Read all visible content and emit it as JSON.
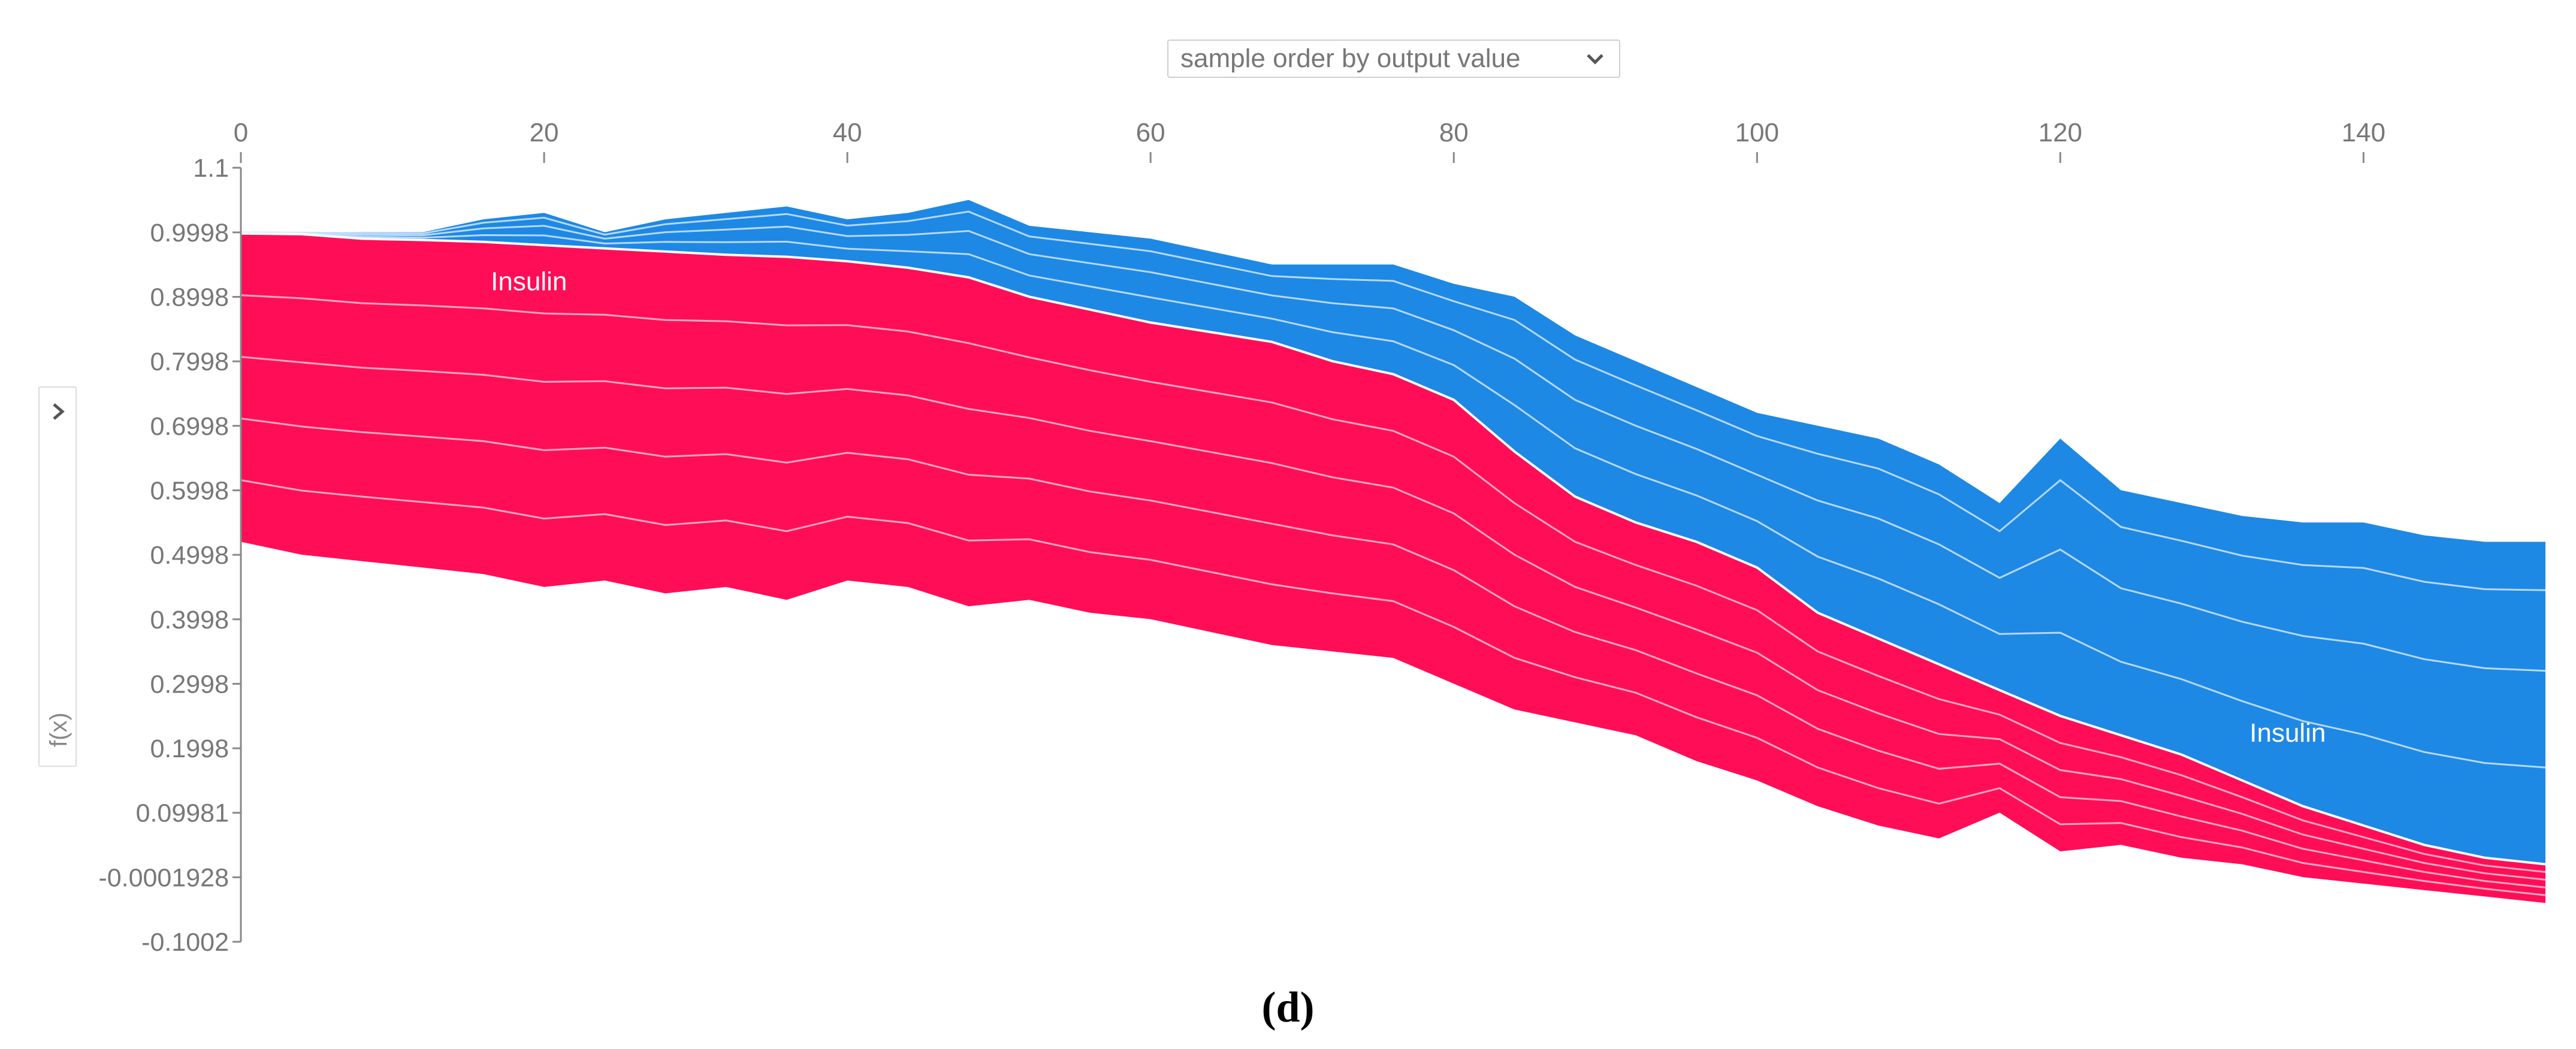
{
  "controls": {
    "sort_select": "sample order by output value"
  },
  "y_axis": {
    "title": "f(x)"
  },
  "caption": "(d)",
  "colors": {
    "positive": "#ff0d57",
    "negative": "#1e88e5",
    "positive_line": "#ffc3d5",
    "negative_line": "#d1e6fa",
    "axis": "#888888"
  },
  "chart_data": {
    "type": "area",
    "title": "",
    "xlabel": "",
    "ylabel": "f(x)",
    "xlim": [
      0,
      152
    ],
    "ylim": [
      -0.1002,
      1.1
    ],
    "x_ticks": [
      0,
      20,
      40,
      60,
      80,
      100,
      120,
      140
    ],
    "y_ticks": [
      {
        "v": 1.1,
        "label": "1.1"
      },
      {
        "v": 0.9998,
        "label": "0.9998"
      },
      {
        "v": 0.8998,
        "label": "0.8998"
      },
      {
        "v": 0.7998,
        "label": "0.7998"
      },
      {
        "v": 0.6998,
        "label": "0.6998"
      },
      {
        "v": 0.5998,
        "label": "0.5998"
      },
      {
        "v": 0.4998,
        "label": "0.4998"
      },
      {
        "v": 0.3998,
        "label": "0.3998"
      },
      {
        "v": 0.2998,
        "label": "0.2998"
      },
      {
        "v": 0.1998,
        "label": "0.1998"
      },
      {
        "v": 0.09981,
        "label": "0.09981"
      },
      {
        "v": -0.0001928,
        "label": "-0.0001928"
      },
      {
        "v": -0.1002,
        "label": "-0.1002"
      }
    ],
    "annotations": [
      {
        "text": "Insulin",
        "x": 19,
        "y": 0.91
      },
      {
        "text": "Insulin",
        "x": 135,
        "y": 0.21
      }
    ],
    "x": [
      0,
      4,
      8,
      12,
      16,
      20,
      24,
      28,
      32,
      36,
      40,
      44,
      48,
      52,
      56,
      60,
      64,
      68,
      72,
      76,
      80,
      84,
      88,
      92,
      96,
      100,
      104,
      108,
      112,
      116,
      120,
      124,
      128,
      132,
      136,
      140,
      144,
      148,
      152
    ],
    "output": [
      0.998,
      0.997,
      0.99,
      0.988,
      0.985,
      0.98,
      0.975,
      0.97,
      0.965,
      0.962,
      0.955,
      0.945,
      0.93,
      0.9,
      0.88,
      0.86,
      0.845,
      0.83,
      0.8,
      0.78,
      0.74,
      0.66,
      0.59,
      0.55,
      0.52,
      0.48,
      0.41,
      0.37,
      0.33,
      0.29,
      0.25,
      0.22,
      0.19,
      0.15,
      0.11,
      0.08,
      0.05,
      0.03,
      0.02
    ],
    "pos_bottom": [
      0.52,
      0.5,
      0.49,
      0.48,
      0.47,
      0.45,
      0.46,
      0.44,
      0.45,
      0.43,
      0.46,
      0.45,
      0.42,
      0.43,
      0.41,
      0.4,
      0.38,
      0.36,
      0.35,
      0.34,
      0.3,
      0.26,
      0.24,
      0.22,
      0.18,
      0.15,
      0.11,
      0.08,
      0.06,
      0.1,
      0.04,
      0.05,
      0.03,
      0.02,
      0.0,
      -0.01,
      -0.02,
      -0.03,
      -0.04
    ],
    "neg_top": [
      1.0,
      1.0,
      1.0,
      1.0,
      1.02,
      1.03,
      1.0,
      1.02,
      1.03,
      1.04,
      1.02,
      1.03,
      1.05,
      1.01,
      1.0,
      0.99,
      0.97,
      0.95,
      0.95,
      0.95,
      0.92,
      0.9,
      0.84,
      0.8,
      0.76,
      0.72,
      0.7,
      0.68,
      0.64,
      0.58,
      0.68,
      0.6,
      0.58,
      0.56,
      0.55,
      0.55,
      0.53,
      0.52,
      0.52
    ]
  }
}
